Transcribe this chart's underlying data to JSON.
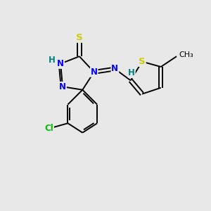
{
  "bg_color": "#e8e8e8",
  "atom_colors": {
    "C": "#000000",
    "N": "#0000ff",
    "S": "#cccc00",
    "Cl": "#00bb00",
    "H": "#008080"
  },
  "bond_color": "#000000",
  "font_size": 8.5,
  "fig_size": [
    3.0,
    3.0
  ],
  "dpi": 100
}
